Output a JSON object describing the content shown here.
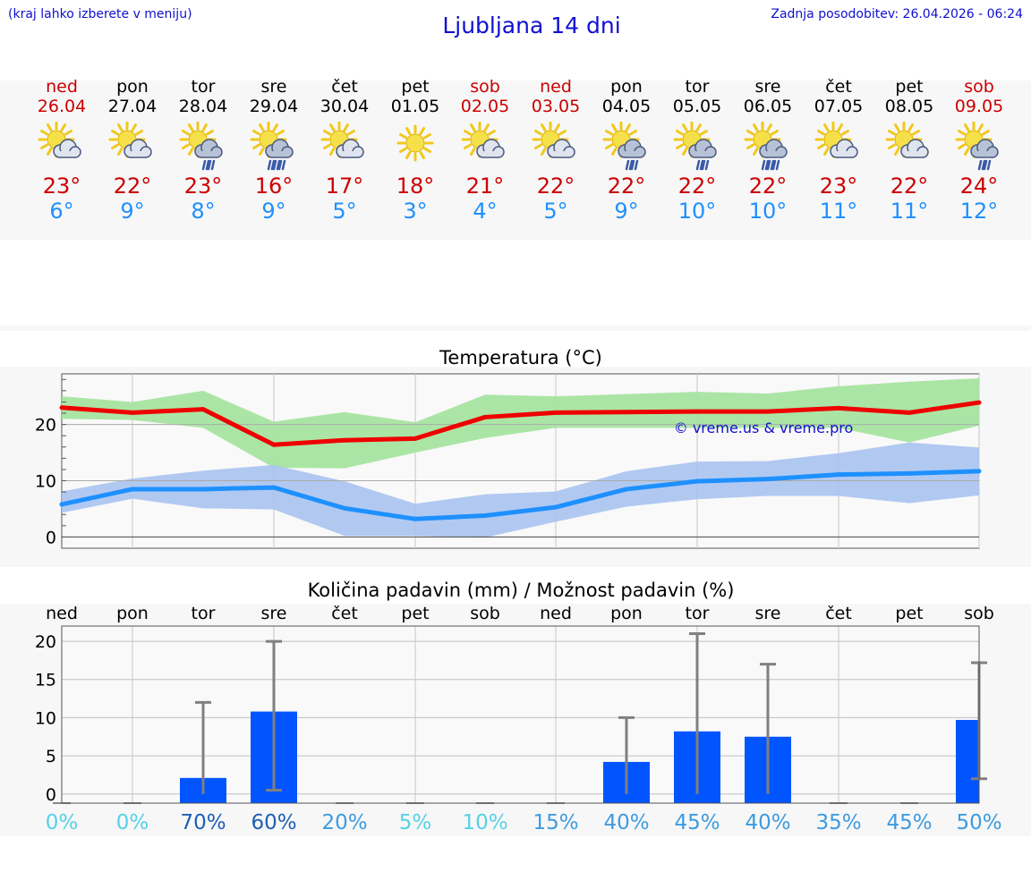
{
  "header": {
    "menu_hint": "(kraj lahko izberete v meniju)",
    "title": "Ljubljana 14 dni",
    "updated": "Zadnja posodobitev: 26.04.2026 - 06:24"
  },
  "colors": {
    "max_line": "#ee0000",
    "max_band": "#a6e4a0",
    "min_line": "#1e90ff",
    "min_band": "#a9c3f0",
    "bar": "#0055ff",
    "errorbar": "#808080",
    "weekend_text": "#cc0000"
  },
  "days": [
    {
      "name": "ned",
      "date": "26.04",
      "weekend": true,
      "icon": "sun-cloud-icon",
      "tmax": "23°",
      "tmin": "6°"
    },
    {
      "name": "pon",
      "date": "27.04",
      "weekend": false,
      "icon": "sun-cloud-icon",
      "tmax": "22°",
      "tmin": "9°"
    },
    {
      "name": "tor",
      "date": "28.04",
      "weekend": false,
      "icon": "sun-cloud-rain-icon",
      "tmax": "23°",
      "tmin": "8°"
    },
    {
      "name": "sre",
      "date": "29.04",
      "weekend": false,
      "icon": "sun-cloud-heavy-rain-icon",
      "tmax": "16°",
      "tmin": "9°"
    },
    {
      "name": "čet",
      "date": "30.04",
      "weekend": false,
      "icon": "sun-cloud-icon",
      "tmax": "17°",
      "tmin": "5°"
    },
    {
      "name": "pet",
      "date": "01.05",
      "weekend": false,
      "icon": "sun-icon",
      "tmax": "18°",
      "tmin": "3°"
    },
    {
      "name": "sob",
      "date": "02.05",
      "weekend": true,
      "icon": "sun-cloud-icon",
      "tmax": "21°",
      "tmin": "4°"
    },
    {
      "name": "ned",
      "date": "03.05",
      "weekend": true,
      "icon": "sun-cloud-icon",
      "tmax": "22°",
      "tmin": "5°"
    },
    {
      "name": "pon",
      "date": "04.05",
      "weekend": false,
      "icon": "sun-cloud-rain-icon",
      "tmax": "22°",
      "tmin": "9°"
    },
    {
      "name": "tor",
      "date": "05.05",
      "weekend": false,
      "icon": "sun-cloud-rain-icon",
      "tmax": "22°",
      "tmin": "10°"
    },
    {
      "name": "sre",
      "date": "06.05",
      "weekend": false,
      "icon": "sun-cloud-heavy-rain-icon",
      "tmax": "22°",
      "tmin": "10°"
    },
    {
      "name": "čet",
      "date": "07.05",
      "weekend": false,
      "icon": "sun-cloud-icon",
      "tmax": "23°",
      "tmin": "11°"
    },
    {
      "name": "pet",
      "date": "08.05",
      "weekend": false,
      "icon": "sun-cloud-icon",
      "tmax": "22°",
      "tmin": "11°"
    },
    {
      "name": "sob",
      "date": "09.05",
      "weekend": true,
      "icon": "sun-cloud-rain-icon",
      "tmax": "24°",
      "tmin": "12°"
    }
  ],
  "chart_data": [
    {
      "type": "line",
      "title": "Temperatura (°C)",
      "watermark": "© vreme.us & vreme.pro",
      "ylim": [
        -2,
        29
      ],
      "yticks": [
        0,
        10,
        20
      ],
      "series": [
        {
          "name": "max",
          "values": [
            23,
            22.1,
            22.7,
            16.4,
            17.2,
            17.5,
            21.3,
            22.1,
            22.2,
            22.3,
            22.3,
            22.9,
            22.1,
            23.9
          ],
          "upper": [
            25,
            24,
            26,
            20.5,
            22.2,
            20.4,
            25.3,
            25,
            25.4,
            25.8,
            25.5,
            26.8,
            27.6,
            28.2
          ],
          "lower": [
            21,
            20.8,
            19.4,
            12.3,
            12.2,
            15,
            17.6,
            19.4,
            19.4,
            19.4,
            19.4,
            19.4,
            16.8,
            19.8
          ]
        },
        {
          "name": "min",
          "values": [
            5.8,
            8.5,
            8.5,
            8.8,
            5.1,
            3.2,
            3.8,
            5.3,
            8.5,
            9.9,
            10.3,
            11.1,
            11.3,
            11.7
          ],
          "upper": [
            8.1,
            10.4,
            11.8,
            12.8,
            9.9,
            5.9,
            7.6,
            8.1,
            11.7,
            13.4,
            13.5,
            14.9,
            16.8,
            15.9
          ],
          "lower": [
            4.3,
            6.8,
            5.1,
            4.9,
            0.2,
            0.2,
            -0.1,
            2.7,
            5.4,
            6.7,
            7.3,
            7.3,
            6,
            7.4
          ]
        }
      ]
    },
    {
      "type": "bar",
      "title": "Količina padavin (mm) / Možnost padavin (%)",
      "categories": [
        "ned",
        "pon",
        "tor",
        "sre",
        "čet",
        "pet",
        "sob",
        "ned",
        "pon",
        "tor",
        "sre",
        "čet",
        "pet",
        "sob"
      ],
      "ylim": [
        -1.2,
        22
      ],
      "yticks": [
        0,
        5,
        10,
        15,
        20
      ],
      "values": [
        0,
        0,
        2.1,
        10.8,
        0,
        0,
        0,
        0,
        4.2,
        8.2,
        7.5,
        0,
        0,
        9.7
      ],
      "error_high": [
        0,
        0,
        12,
        20,
        0,
        0,
        0,
        0,
        10,
        21,
        17,
        0,
        0,
        17.2
      ],
      "error_low": [
        0,
        0,
        0,
        0.5,
        0,
        0,
        0,
        0,
        0,
        0,
        0,
        0,
        0,
        2
      ],
      "probabilities": [
        "0%",
        "0%",
        "70%",
        "60%",
        "20%",
        "5%",
        "10%",
        "15%",
        "40%",
        "45%",
        "40%",
        "35%",
        "45%",
        "50%"
      ],
      "probability_colors": [
        "#55d2e8",
        "#55d2e8",
        "#1c5fb5",
        "#1c5fb5",
        "#3d9be0",
        "#55d2e8",
        "#55d2e8",
        "#3d9be0",
        "#3d9be0",
        "#3d9be0",
        "#3d9be0",
        "#3d9be0",
        "#3d9be0",
        "#3d9be0"
      ]
    }
  ]
}
